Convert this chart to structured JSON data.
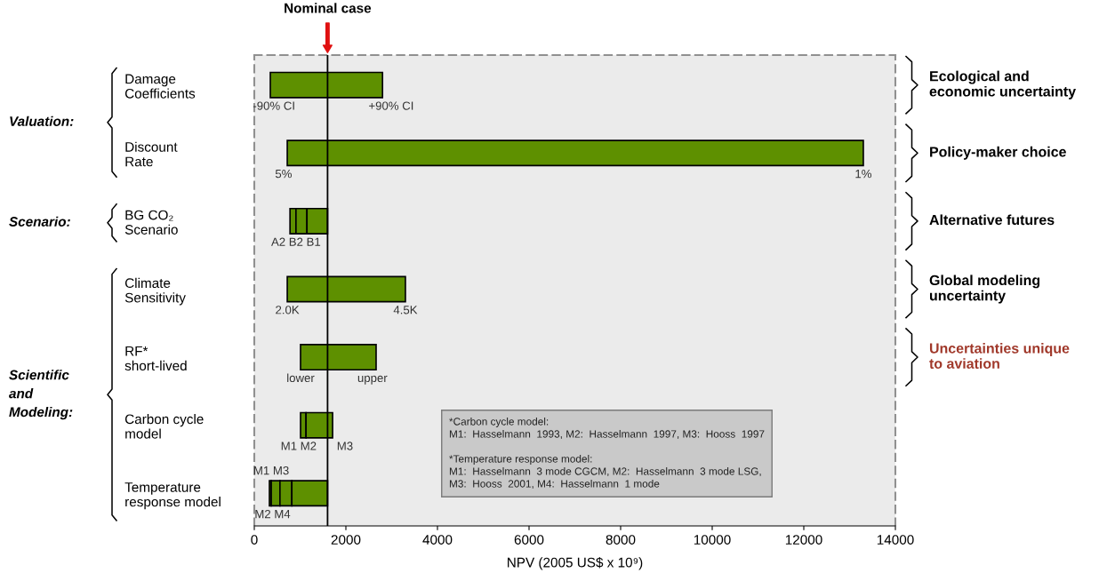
{
  "chart_data": {
    "type": "bar",
    "orientation": "horizontal",
    "categories": [
      "Damage\nCoefficients",
      "Discount\nRate",
      "BG CO₂\nScenario",
      "Climate\nSensitivity",
      "RF*\nshort-lived",
      "Carbon cycle\nmodel",
      "Temperature\nresponse model"
    ],
    "series": [
      {
        "color": "#5e9000",
        "base": [
          350,
          720,
          780,
          720,
          1010,
          1010,
          330
        ],
        "values": [
          2450,
          12580,
          130,
          2580,
          1650,
          120,
          40
        ]
      },
      {
        "color": "#5e9000",
        "base": [
          null,
          null,
          910,
          null,
          null,
          1130,
          370
        ],
        "values": [
          null,
          null,
          240,
          null,
          null,
          580,
          190
        ]
      },
      {
        "color": "#5e9000",
        "base": [
          null,
          null,
          1150,
          null,
          null,
          null,
          560
        ],
        "values": [
          null,
          null,
          450,
          null,
          null,
          null,
          260
        ]
      },
      {
        "color": "#5e9000",
        "base": [
          null,
          null,
          null,
          null,
          null,
          null,
          820
        ],
        "values": [
          null,
          null,
          null,
          null,
          null,
          null,
          780
        ]
      }
    ],
    "xlim": [
      0,
      14000
    ],
    "xticks": [
      0,
      2000,
      4000,
      6000,
      8000,
      10000,
      12000,
      14000
    ],
    "xlabel": "NPV (2005 US$ x 10⁹)",
    "ref_lines": [
      {
        "axis": "x",
        "value": 1600,
        "label": "Nominal case",
        "color": "#000000"
      }
    ],
    "annotations": [
      "Valuation:",
      "Scenario:",
      "Scientific\nand\nModeling:",
      "Ecological and\neconomic uncertainty",
      "Policy-maker choice",
      "Alternative futures",
      "Global modeling\nuncertainty",
      "Uncertainties unique\nto aviation",
      "*Carbon cycle model:\nM1:  Hasselmann  1993, M2:  Hasselmann  1997, M3:  Hooss  1997\n\n*Temperature response model:\nM1:  Hasselmann  3 mode CGCM, M2:  Hasselmann  3 mode LSG,\nM3:  Hooss  2001, M4:  Hasselmann  1 mode",
      "-90% CI",
      "+90% CI",
      "5%",
      "1%",
      "A2 B2 B1",
      "2.0K",
      "4.5K",
      "lower",
      "upper",
      "M1 M2",
      "M3",
      "M1 M3",
      "M2 M4"
    ]
  }
}
